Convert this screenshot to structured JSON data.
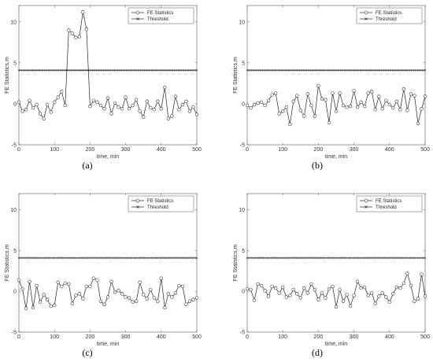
{
  "chart_data": [
    {
      "panel_label": "(a)",
      "type": "line",
      "xlabel": "time, min",
      "ylabel": "FE Statistics,m",
      "xlim": [
        0,
        500
      ],
      "ylim": [
        -5,
        12
      ],
      "xticks": [
        "0",
        "100",
        "200",
        "300",
        "400",
        "500"
      ],
      "yticks": [
        "-5",
        "0",
        "5",
        "10"
      ],
      "legend": "top-right",
      "series": [
        {
          "name": "FE Statistics",
          "marker": "circle",
          "x": [
            0,
            10,
            20,
            30,
            40,
            50,
            60,
            70,
            80,
            90,
            100,
            110,
            120,
            130,
            140,
            150,
            160,
            170,
            180,
            190,
            200,
            210,
            220,
            230,
            240,
            250,
            260,
            270,
            280,
            290,
            300,
            310,
            320,
            330,
            340,
            350,
            360,
            370,
            380,
            390,
            400,
            410,
            420,
            430,
            440,
            450,
            460,
            470,
            480,
            490,
            500
          ],
          "y": [
            0.2,
            -0.9,
            -0.7,
            0.4,
            -0.5,
            -0.1,
            -1.2,
            -1.8,
            -0.1,
            -1.0,
            0.2,
            0.8,
            1.5,
            -0.2,
            9.0,
            8.6,
            8.1,
            8.2,
            11.2,
            9.1,
            -0.3,
            0.4,
            0.2,
            -0.2,
            -0.6,
            0.7,
            -1.2,
            0.1,
            -0.4,
            -0.6,
            0.8,
            -0.6,
            -0.2,
            0.5,
            -0.9,
            -1.6,
            0.3,
            -0.5,
            -0.7,
            0.3,
            -0.6,
            2.0,
            -1.8,
            -1.5,
            0.9,
            -0.7,
            -0.1,
            0.3,
            -0.9,
            -0.4,
            -1.3
          ]
        },
        {
          "name": "Threshold",
          "marker": "x",
          "x": [
            0,
            500
          ],
          "y": [
            4.1,
            4.1
          ]
        }
      ]
    },
    {
      "panel_label": "(b)",
      "type": "line",
      "xlabel": "time, min",
      "ylabel": "FE Statistics,m",
      "xlim": [
        0,
        500
      ],
      "ylim": [
        -5,
        12
      ],
      "xticks": [
        "0",
        "100",
        "200",
        "300",
        "400",
        "500"
      ],
      "yticks": [
        "-5",
        "0",
        "5",
        "10"
      ],
      "legend": "top-right",
      "series": [
        {
          "name": "FE Statistics",
          "marker": "circle",
          "x": [
            0,
            10,
            20,
            30,
            40,
            50,
            60,
            70,
            80,
            90,
            100,
            110,
            120,
            130,
            140,
            150,
            160,
            170,
            180,
            190,
            200,
            210,
            220,
            230,
            240,
            250,
            260,
            270,
            280,
            290,
            300,
            310,
            320,
            330,
            340,
            350,
            360,
            370,
            380,
            390,
            400,
            410,
            420,
            430,
            440,
            450,
            460,
            470,
            480,
            490,
            500
          ],
          "y": [
            -0.2,
            -0.5,
            -0.1,
            0.1,
            0.2,
            -0.2,
            0.4,
            1.1,
            1.3,
            -1.2,
            -0.9,
            -0.4,
            -2.5,
            0.3,
            1.0,
            -0.8,
            -1.5,
            1.2,
            -0.2,
            -1.5,
            2.2,
            0.6,
            0.5,
            -2.3,
            1.3,
            -0.9,
            1.3,
            -0.2,
            -0.4,
            -0.3,
            1.6,
            -0.4,
            0.2,
            -0.3,
            1.3,
            1.5,
            -0.7,
            0.9,
            -0.6,
            0.4,
            -0.1,
            -0.5,
            0.3,
            -0.7,
            1.8,
            -0.8,
            1.2,
            1.0,
            -2.4,
            -0.6,
            0.9
          ]
        },
        {
          "name": "Threshold",
          "marker": "x",
          "x": [
            0,
            500
          ],
          "y": [
            4.1,
            4.1
          ]
        }
      ]
    },
    {
      "panel_label": "(c)",
      "type": "line",
      "xlabel": "time, min",
      "ylabel": "FE Statistics,m",
      "xlim": [
        0,
        500
      ],
      "ylim": [
        -5,
        12
      ],
      "xticks": [
        "0",
        "100",
        "200",
        "300",
        "400",
        "500"
      ],
      "yticks": [
        "-5",
        "0",
        "5",
        "10"
      ],
      "legend": "top-right",
      "series": [
        {
          "name": "FE Statistics",
          "marker": "circle",
          "x": [
            0,
            10,
            20,
            30,
            40,
            50,
            60,
            70,
            80,
            90,
            100,
            110,
            120,
            130,
            140,
            150,
            160,
            170,
            180,
            190,
            200,
            210,
            220,
            230,
            240,
            250,
            260,
            270,
            280,
            290,
            300,
            310,
            320,
            330,
            340,
            350,
            360,
            370,
            380,
            390,
            400,
            410,
            420,
            430,
            440,
            450,
            460,
            470,
            480,
            490,
            500
          ],
          "y": [
            1.4,
            0.3,
            -2.1,
            1.2,
            -2.0,
            0.7,
            -1.3,
            -0.4,
            -1.0,
            -1.8,
            -1.7,
            1.1,
            0.6,
            1.0,
            0.9,
            -1.5,
            -0.5,
            -0.3,
            -0.9,
            0.6,
            0.6,
            1.6,
            1.4,
            -1.2,
            -1.6,
            -0.7,
            1.2,
            -0.1,
            0.1,
            -0.3,
            -0.7,
            -0.8,
            -1.3,
            -1.2,
            1.1,
            -0.4,
            -0.9,
            0.2,
            -0.8,
            -1.2,
            1.6,
            -2.0,
            -0.3,
            -0.7,
            -0.2,
            0.7,
            0.6,
            -1.6,
            -1.2,
            -1.0,
            -0.8
          ]
        },
        {
          "name": "Threshold",
          "marker": "x",
          "x": [
            0,
            500
          ],
          "y": [
            4.1,
            4.1
          ]
        }
      ]
    },
    {
      "panel_label": "(d)",
      "type": "line",
      "xlabel": "time, min",
      "ylabel": "FE Statistics,m",
      "xlim": [
        0,
        500
      ],
      "ylim": [
        -5,
        12
      ],
      "xticks": [
        "0",
        "100",
        "200",
        "300",
        "400",
        "500"
      ],
      "yticks": [
        "-5",
        "0",
        "5",
        "10"
      ],
      "legend": "top-right",
      "series": [
        {
          "name": "FE Statistics",
          "marker": "circle",
          "x": [
            0,
            10,
            20,
            30,
            40,
            50,
            60,
            70,
            80,
            90,
            100,
            110,
            120,
            130,
            140,
            150,
            160,
            170,
            180,
            190,
            200,
            210,
            220,
            230,
            240,
            250,
            260,
            270,
            280,
            290,
            300,
            310,
            320,
            330,
            340,
            350,
            360,
            370,
            380,
            390,
            400,
            410,
            420,
            430,
            440,
            450,
            460,
            470,
            480,
            490,
            500
          ],
          "y": [
            0.3,
            0.2,
            -1.1,
            0.9,
            0.7,
            0.1,
            -0.6,
            0.6,
            0.4,
            -0.2,
            0.5,
            -0.7,
            -0.5,
            0.2,
            -0.3,
            -0.8,
            0.4,
            -0.2,
            0.9,
            0.2,
            -1.0,
            -0.2,
            -0.8,
            0.3,
            0.6,
            -1.9,
            0.2,
            -1.2,
            -0.4,
            -1.8,
            -0.5,
            1.2,
            0.4,
            0.5,
            -0.5,
            -0.2,
            -1.5,
            -0.6,
            -0.2,
            -0.7,
            -1.3,
            -0.3,
            0.5,
            0.4,
            1.0,
            2.2,
            0.7,
            -1.2,
            -0.9,
            2.1,
            -0.6
          ]
        },
        {
          "name": "Threshold",
          "marker": "x",
          "x": [
            0,
            500
          ],
          "y": [
            4.1,
            4.1
          ]
        }
      ]
    }
  ]
}
